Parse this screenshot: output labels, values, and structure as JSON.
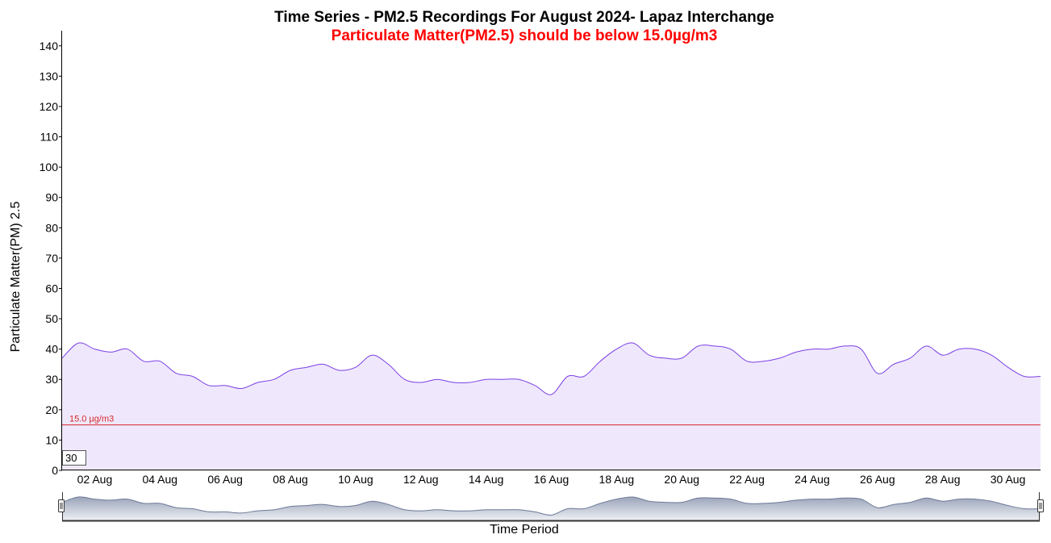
{
  "chart_data": {
    "type": "area",
    "title": "Time Series - PM2.5 Recordings For August 2024- Lapaz Interchange",
    "subtitle": "Particulate Matter(PM2.5) should be below 15.0µg/m3",
    "xlabel": "Time Period",
    "ylabel": "Particulate Matter(PM) 2.5",
    "ylim": [
      0,
      145
    ],
    "y_ticks": [
      0,
      10,
      20,
      30,
      40,
      50,
      60,
      70,
      80,
      90,
      100,
      110,
      120,
      130,
      140
    ],
    "x_range": [
      "2024-08-01",
      "2024-08-31"
    ],
    "x_tick_labels": [
      "02 Aug",
      "04 Aug",
      "06 Aug",
      "08 Aug",
      "10 Aug",
      "12 Aug",
      "14 Aug",
      "16 Aug",
      "18 Aug",
      "20 Aug",
      "22 Aug",
      "24 Aug",
      "26 Aug",
      "28 Aug",
      "30 Aug"
    ],
    "threshold": {
      "value": 15.0,
      "label": "15.0 µg/m3",
      "color": "#d62728"
    },
    "rolling_period": "30",
    "colors": {
      "line": "#7b3fe4",
      "fill": "#efe8fd",
      "range_fill": "#c4cad8",
      "range_line": "#6d7a96"
    },
    "grid": false,
    "series": [
      {
        "x": [
          "2024-08-01 00:00",
          "2024-08-01 12:00",
          "2024-08-02 00:00",
          "2024-08-02 12:00",
          "2024-08-03 00:00",
          "2024-08-03 12:00",
          "2024-08-04 00:00",
          "2024-08-04 12:00",
          "2024-08-05 00:00",
          "2024-08-05 12:00",
          "2024-08-06 00:00",
          "2024-08-06 12:00",
          "2024-08-07 00:00",
          "2024-08-07 12:00",
          "2024-08-08 00:00",
          "2024-08-08 12:00",
          "2024-08-09 00:00",
          "2024-08-09 12:00",
          "2024-08-10 00:00",
          "2024-08-10 12:00",
          "2024-08-11 00:00",
          "2024-08-11 12:00",
          "2024-08-12 00:00",
          "2024-08-12 12:00",
          "2024-08-13 00:00",
          "2024-08-13 12:00",
          "2024-08-14 00:00",
          "2024-08-14 12:00",
          "2024-08-15 00:00",
          "2024-08-15 12:00",
          "2024-08-16 00:00",
          "2024-08-16 12:00",
          "2024-08-17 00:00",
          "2024-08-17 12:00",
          "2024-08-18 00:00",
          "2024-08-18 12:00",
          "2024-08-19 00:00",
          "2024-08-19 12:00",
          "2024-08-20 00:00",
          "2024-08-20 12:00",
          "2024-08-21 00:00",
          "2024-08-21 12:00",
          "2024-08-22 00:00",
          "2024-08-22 12:00",
          "2024-08-23 00:00",
          "2024-08-23 12:00",
          "2024-08-24 00:00",
          "2024-08-24 12:00",
          "2024-08-25 00:00",
          "2024-08-25 12:00",
          "2024-08-26 00:00",
          "2024-08-26 12:00",
          "2024-08-27 00:00",
          "2024-08-27 12:00",
          "2024-08-28 00:00",
          "2024-08-28 12:00",
          "2024-08-29 00:00",
          "2024-08-29 12:00",
          "2024-08-30 00:00",
          "2024-08-30 12:00",
          "2024-08-31 00:00"
        ],
        "values": [
          37,
          42,
          40,
          39,
          40,
          36,
          36,
          32,
          31,
          28,
          28,
          27,
          29,
          30,
          33,
          34,
          35,
          33,
          34,
          38,
          35,
          30,
          29,
          30,
          29,
          29,
          30,
          30,
          30,
          28,
          25,
          31,
          31,
          36,
          40,
          42,
          38,
          37,
          37,
          41,
          41,
          40,
          36,
          36,
          37,
          39,
          40,
          40,
          41,
          40,
          32,
          35,
          37,
          41,
          38,
          40,
          40,
          38,
          34,
          31,
          31
        ]
      }
    ]
  }
}
